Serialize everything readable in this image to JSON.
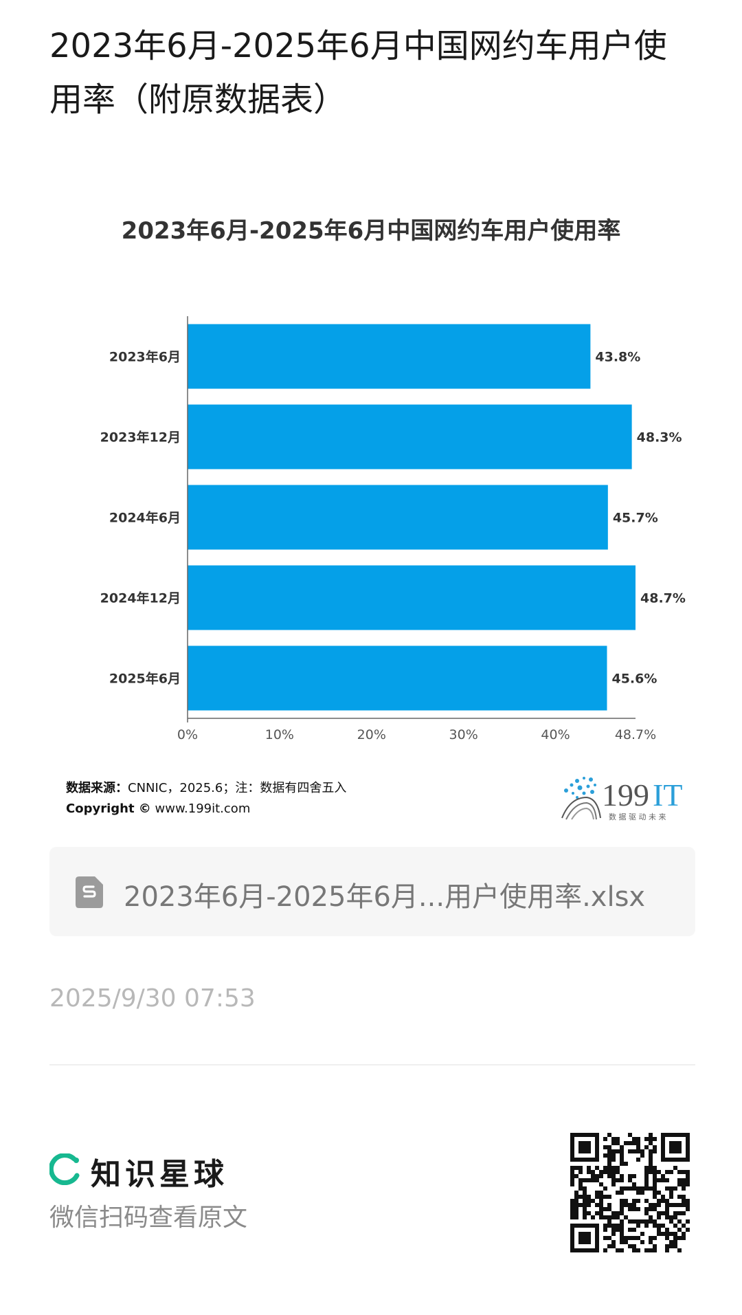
{
  "page": {
    "title": "2023年6月-2025年6月中国网约车用户使用率（附原数据表）"
  },
  "chart_data": {
    "type": "bar",
    "orientation": "horizontal",
    "title": "2023年6月-2025年6月中国网约车用户使用率",
    "categories": [
      "2023年6月",
      "2023年12月",
      "2024年6月",
      "2024年12月",
      "2025年6月"
    ],
    "values": [
      43.8,
      48.3,
      45.7,
      48.7,
      45.6
    ],
    "value_labels": [
      "43.8%",
      "48.3%",
      "45.7%",
      "48.7%",
      "45.6%"
    ],
    "x_ticks": [
      "0%",
      "10%",
      "20%",
      "30%",
      "40%",
      "48.7%"
    ],
    "x_tick_values": [
      0,
      10,
      20,
      30,
      40,
      48.7
    ],
    "xlim": [
      0,
      48.7
    ],
    "bar_color": "#05a0e8",
    "grid": false,
    "legend": "none"
  },
  "footnote": {
    "source_label": "数据来源：",
    "source_text": "CNNIC，2025.6；注：数据有四舍五入",
    "copyright_label": "Copyright ©",
    "copyright_text": " www.199it.com"
  },
  "logo": {
    "name": "199IT",
    "digits": "199",
    "letters": "IT",
    "tagline": "数 据 驱 动 未 来",
    "color": "#2b9fd9"
  },
  "file": {
    "name": "2023年6月-2025年6月...用户使用率.xlsx",
    "icon": "spreadsheet-file-icon"
  },
  "timestamp": "2025/9/30 07:53",
  "brand": {
    "name": "知识星球",
    "subtitle": "微信扫码查看原文",
    "accent": "#17b890",
    "icon": "zsxq-logo-icon"
  },
  "qr": {
    "icon": "qr-code-icon"
  }
}
